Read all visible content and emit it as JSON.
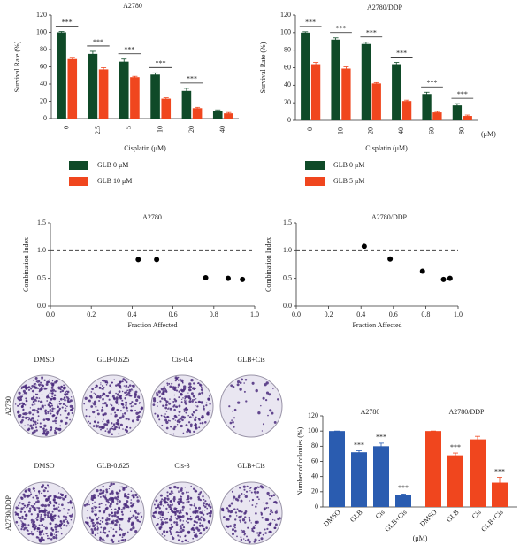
{
  "chart_data": [
    {
      "type": "bar",
      "title": "A2780",
      "x_label": "Cisplatin (μM)",
      "y_label": "Survival Rate (%)",
      "categories": [
        "0",
        "2.5",
        "5",
        "10",
        "20",
        "40"
      ],
      "series": [
        {
          "name": "GLB 0 μM",
          "color": "#0f4a28",
          "values": [
            100,
            75,
            66,
            51,
            32,
            9
          ],
          "errors": [
            1,
            3,
            3,
            2,
            3,
            1
          ]
        },
        {
          "name": "GLB 10 μM",
          "color": "#f0461e",
          "values": [
            69,
            57,
            48,
            23,
            12,
            6
          ],
          "errors": [
            2,
            2,
            1,
            1,
            1,
            1
          ]
        }
      ],
      "significance": [
        "***",
        "***",
        "***",
        "***",
        "***",
        null
      ],
      "ylim": [
        0,
        120
      ],
      "yticks": [
        0,
        20,
        40,
        60,
        80,
        100,
        120
      ]
    },
    {
      "type": "bar",
      "title": "A2780/DDP",
      "x_label": "Cisplatin (μM)",
      "x_unit": "(μM)",
      "y_label": "Survival Rate (%)",
      "categories": [
        "0",
        "10",
        "20",
        "40",
        "60",
        "80"
      ],
      "series": [
        {
          "name": "GLB 0 μM",
          "color": "#0f4a28",
          "values": [
            100,
            92,
            87,
            64,
            30,
            17
          ],
          "errors": [
            1,
            2,
            2,
            2,
            2,
            2
          ]
        },
        {
          "name": "GLB 5 μM",
          "color": "#f0461e",
          "values": [
            64,
            59,
            42,
            22,
            9,
            5
          ],
          "errors": [
            2,
            2,
            1,
            1,
            1,
            1
          ]
        }
      ],
      "significance": [
        "***",
        "***",
        "***",
        "***",
        "***",
        "***"
      ],
      "ylim": [
        0,
        120
      ],
      "yticks": [
        0,
        20,
        40,
        60,
        80,
        100,
        120
      ]
    },
    {
      "type": "scatter",
      "title": "A2780",
      "x_label": "Fraction Affected",
      "y_label": "Combination Index",
      "x": [
        0.43,
        0.52,
        0.76,
        0.87,
        0.94
      ],
      "values": [
        0.84,
        0.84,
        0.51,
        0.5,
        0.48
      ],
      "color": "#000000",
      "reference_line": 1,
      "xlim": [
        0,
        1
      ],
      "xticks": [
        {
          "value": 0,
          "label": "0.0"
        },
        0.2,
        0.4,
        0.6,
        0.8,
        {
          "value": 1,
          "label": "1.0"
        }
      ],
      "ylim": [
        0,
        1.5
      ],
      "yticks": [
        {
          "value": 0,
          "label": "0.0"
        },
        0.5,
        {
          "value": 1,
          "label": "1.0"
        },
        1.5
      ]
    },
    {
      "type": "scatter",
      "title": "A2780/DDP",
      "x_label": "Fraction Affected",
      "y_label": "Combination Index",
      "x": [
        0.42,
        0.58,
        0.78,
        0.91,
        0.95
      ],
      "values": [
        1.08,
        0.85,
        0.63,
        0.48,
        0.5
      ],
      "color": "#000000",
      "reference_line": 1,
      "xlim": [
        0,
        1
      ],
      "xticks": [
        {
          "value": 0,
          "label": "0.0"
        },
        0.2,
        0.4,
        0.6,
        0.8,
        {
          "value": 1,
          "label": "1.0"
        }
      ],
      "ylim": [
        0,
        1.5
      ],
      "yticks": [
        {
          "value": 0,
          "label": "0.0"
        },
        0.5,
        {
          "value": 1,
          "label": "1.0"
        },
        1.5
      ]
    },
    {
      "type": "grouped-bar",
      "y_label": "Number of colonies (%)",
      "x_unit": "(μM)",
      "groups": [
        {
          "name": "A2780",
          "color": "#2a5cb0",
          "categories": [
            "DMSO",
            "GLB",
            "Cis",
            "GLB+Cis"
          ],
          "values": [
            100,
            72,
            80,
            16
          ],
          "errors": [
            0,
            2,
            4,
            1
          ],
          "significance": [
            null,
            "***",
            "***",
            "***"
          ]
        },
        {
          "name": "A2780/DDP",
          "color": "#f0461e",
          "categories": [
            "DMSO",
            "GLB",
            "Cis",
            "GLB+Cis"
          ],
          "values": [
            100,
            68,
            89,
            32
          ],
          "errors": [
            0,
            3,
            4,
            7
          ],
          "significance": [
            null,
            "***",
            null,
            "***"
          ]
        }
      ],
      "ylim": [
        0,
        120
      ],
      "yticks": [
        0,
        20,
        40,
        60,
        80,
        100,
        120
      ]
    }
  ],
  "plates": {
    "rows": [
      {
        "label": "A2780",
        "columns": [
          "DMSO",
          "GLB-0.625",
          "Cis-0.4",
          "GLB+Cis"
        ]
      },
      {
        "label": "A2780/DDP",
        "columns": [
          "DMSO",
          "GLB-0.625",
          "Cis-3",
          "GLB+Cis"
        ]
      }
    ]
  }
}
